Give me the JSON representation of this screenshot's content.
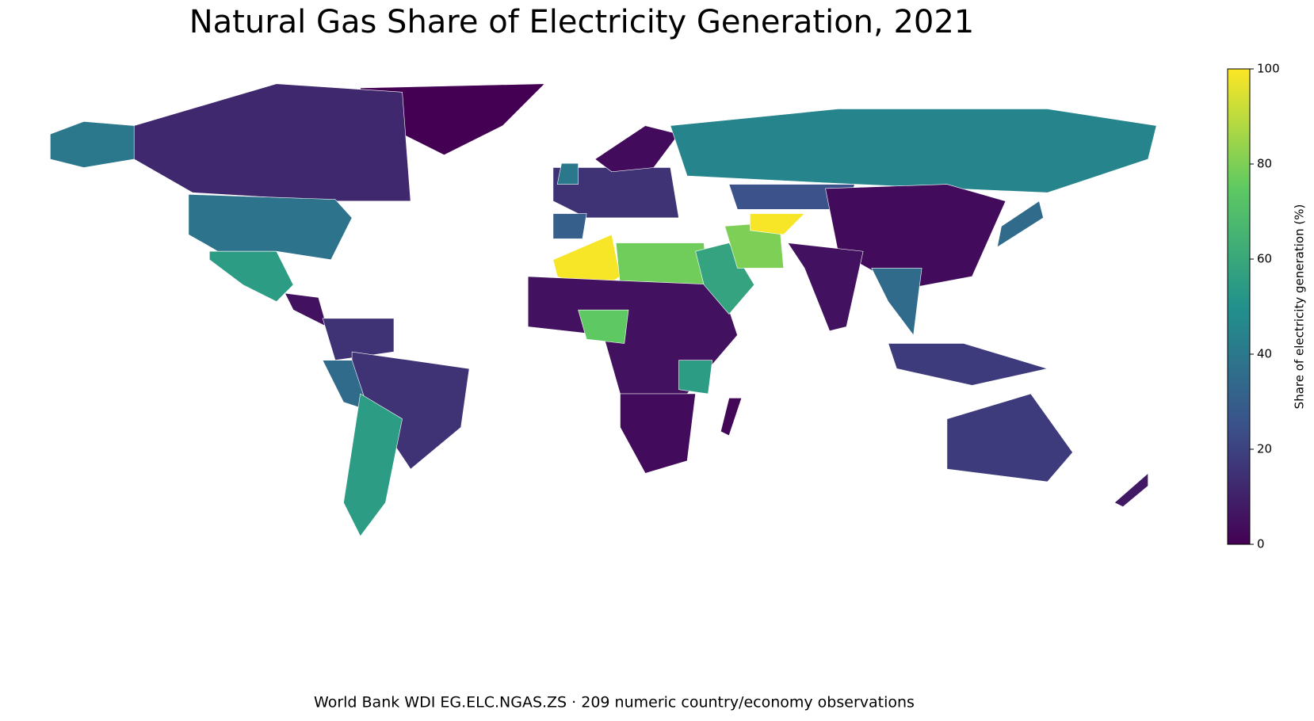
{
  "chart_data": {
    "type": "choropleth",
    "title": "Natural Gas Share of Electricity Generation, 2021",
    "caption": "World Bank WDI EG.ELC.NGAS.ZS · 209 numeric country/economy observations",
    "colorbar_label": "Share of electricity generation (%)",
    "clim": [
      0,
      100
    ],
    "cticks": [
      0,
      20,
      40,
      60,
      80,
      100
    ],
    "values": [
      0,
      12,
      40,
      38,
      55,
      5,
      15,
      15,
      35,
      55,
      15,
      3,
      40,
      30,
      45,
      25,
      99,
      78,
      5,
      75,
      3,
      55,
      2,
      58,
      80,
      99,
      3,
      5,
      35,
      18,
      35,
      18,
      7
    ]
  }
}
